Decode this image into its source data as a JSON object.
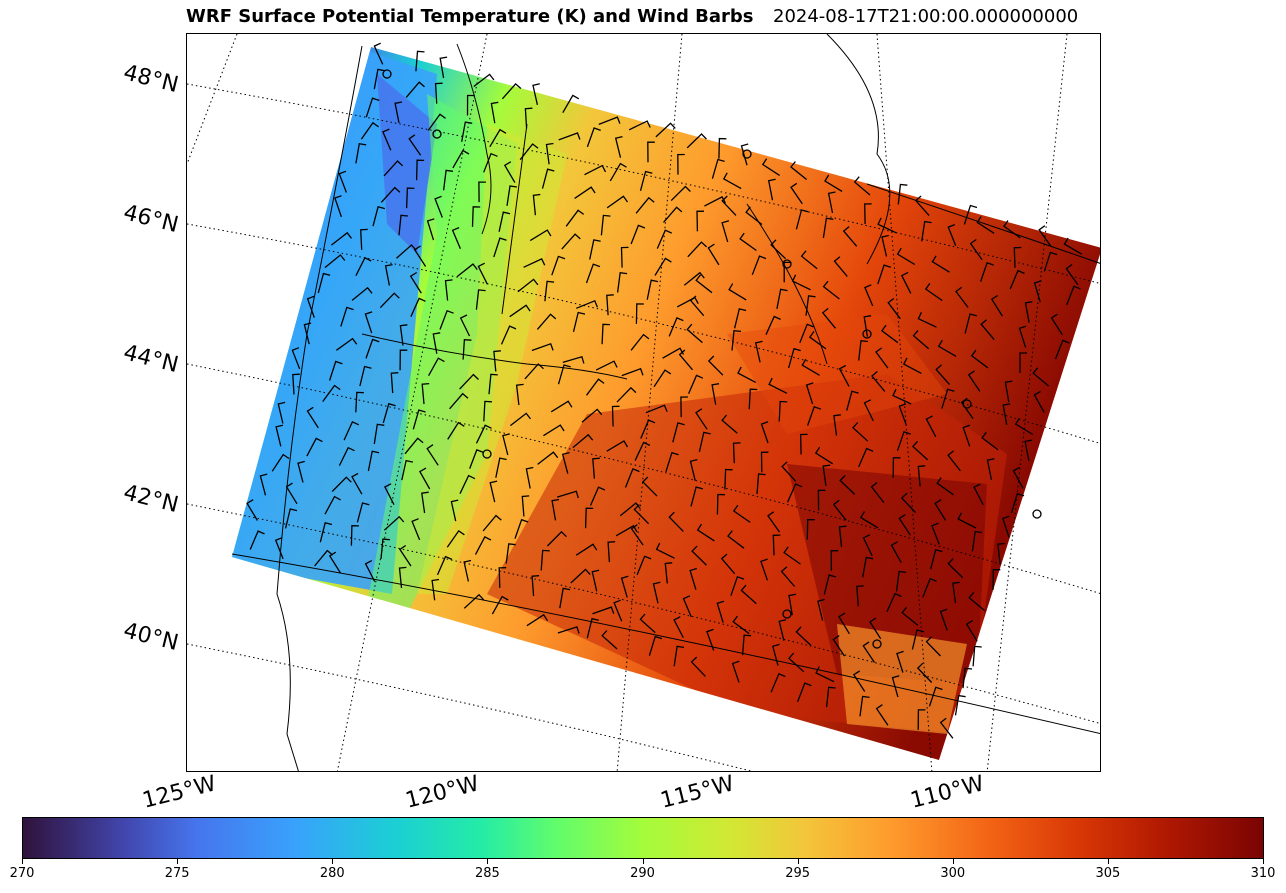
{
  "title": "WRF Surface Potential Temperature (K) and Wind Barbs",
  "timestamp": "2024-08-17T21:00:00.000000000",
  "latitude_labels": [
    "48°N",
    "46°N",
    "44°N",
    "42°N",
    "40°N"
  ],
  "longitude_labels": [
    "125°W",
    "120°W",
    "115°W",
    "110°W"
  ],
  "colorbar": {
    "variable": "Surface Potential Temperature (K)",
    "min": 270,
    "max": 310,
    "ticks": [
      "270",
      "275",
      "280",
      "285",
      "290",
      "295",
      "300",
      "305",
      "310"
    ],
    "colormap": "turbo"
  },
  "colors": {
    "cold_coast": "#39a2fc",
    "mid_cascades": "#61fc6c",
    "warm_plateau": "#fe9b2d",
    "hot_basin": "#b11901"
  }
}
